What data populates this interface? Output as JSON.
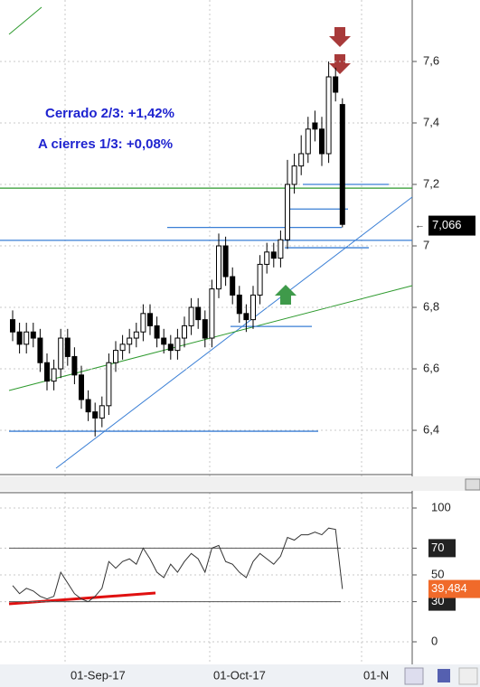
{
  "chart_data": {
    "type": "candlestick",
    "open": [
      6.76,
      6.72,
      6.68,
      6.72,
      6.7,
      6.62,
      6.56,
      6.6,
      6.7,
      6.64,
      6.58,
      6.5,
      6.46,
      6.44,
      6.48,
      6.62,
      6.66,
      6.68,
      6.7,
      6.72,
      6.78,
      6.74,
      6.7,
      6.68,
      6.66,
      6.7,
      6.74,
      6.8,
      6.76,
      6.7,
      6.86,
      7.0,
      6.9,
      6.84,
      6.78,
      6.76,
      6.84,
      6.94,
      6.98,
      6.96,
      7.02,
      7.2,
      7.26,
      7.3,
      7.4,
      7.38,
      7.3,
      7.55,
      7.46
    ],
    "high": [
      6.79,
      6.75,
      6.75,
      6.75,
      6.73,
      6.65,
      6.63,
      6.73,
      6.73,
      6.67,
      6.61,
      6.53,
      6.49,
      6.51,
      6.65,
      6.69,
      6.71,
      6.73,
      6.75,
      6.81,
      6.81,
      6.77,
      6.73,
      6.71,
      6.73,
      6.77,
      6.83,
      6.83,
      6.79,
      6.89,
      7.04,
      7.03,
      6.93,
      6.87,
      6.81,
      6.87,
      6.97,
      7.01,
      7.01,
      7.05,
      7.28,
      7.3,
      7.36,
      7.42,
      7.44,
      7.42,
      7.6,
      7.58,
      7.48
    ],
    "low": [
      6.69,
      6.65,
      6.65,
      6.67,
      6.59,
      6.53,
      6.53,
      6.57,
      6.61,
      6.55,
      6.47,
      6.43,
      6.38,
      6.41,
      6.45,
      6.59,
      6.63,
      6.65,
      6.67,
      6.69,
      6.71,
      6.67,
      6.65,
      6.63,
      6.63,
      6.67,
      6.71,
      6.73,
      6.67,
      6.67,
      6.83,
      6.87,
      6.81,
      6.75,
      6.72,
      6.73,
      6.81,
      6.91,
      6.93,
      6.93,
      6.99,
      7.17,
      7.23,
      7.27,
      7.34,
      7.26,
      7.27,
      7.47,
      7.06
    ],
    "close": [
      6.72,
      6.68,
      6.72,
      6.7,
      6.62,
      6.56,
      6.6,
      6.7,
      6.64,
      6.58,
      6.5,
      6.46,
      6.44,
      6.48,
      6.62,
      6.66,
      6.68,
      6.7,
      6.72,
      6.78,
      6.74,
      6.7,
      6.68,
      6.66,
      6.7,
      6.74,
      6.8,
      6.76,
      6.7,
      6.86,
      7.0,
      6.9,
      6.84,
      6.78,
      6.76,
      6.84,
      6.94,
      6.98,
      6.96,
      7.02,
      7.2,
      7.26,
      7.3,
      7.38,
      7.38,
      7.3,
      7.55,
      7.5,
      7.07
    ],
    "ylim": [
      6.256,
      7.8
    ],
    "yticks": [
      {
        "value": 6.4,
        "label": "6,4"
      },
      {
        "value": 6.6,
        "label": "6,6"
      },
      {
        "value": 6.8,
        "label": "6,8"
      },
      7,
      {
        "value": 7.2,
        "label": "7,2"
      },
      {
        "value": 7.4,
        "label": "7,4"
      },
      {
        "value": 7.6,
        "label": "7,6"
      }
    ],
    "last_price": {
      "value": 7.066,
      "label": "7,066"
    },
    "levels": [
      {
        "value": 7.188,
        "color": "#2e9a2e"
      },
      {
        "value": 7.018,
        "color": "#3a7fd5"
      },
      {
        "value": 7.2,
        "color": "#3a7fd5"
      },
      {
        "value": 7.12,
        "color": "#3a7fd5"
      },
      {
        "value": 7.06,
        "color": "#3a7fd5"
      },
      {
        "value": 6.994,
        "color": "#3a7fd5"
      },
      {
        "value": 6.738,
        "color": "#3a7fd5"
      },
      {
        "value": 6.397,
        "color": "#3a7fd5"
      }
    ],
    "annotations": [
      "Cerrado 2/3: +1,42%",
      "A cierres 1/3: +0,08%"
    ],
    "xtick_labels": [
      "01-Sep-17",
      "01-Oct-17",
      "01-N"
    ],
    "rsi": {
      "values": [
        42,
        36,
        40,
        38,
        34,
        32,
        34,
        52,
        44,
        36,
        32,
        30,
        34,
        40,
        60,
        55,
        60,
        62,
        58,
        70,
        62,
        52,
        48,
        58,
        52,
        60,
        66,
        62,
        52,
        70,
        72,
        60,
        58,
        52,
        48,
        60,
        66,
        62,
        58,
        64,
        78,
        76,
        80,
        80,
        82,
        80,
        85,
        84,
        39.484
      ],
      "ylim": [
        0,
        100
      ],
      "yticks": [
        0,
        30,
        50,
        70,
        100
      ],
      "levels": [
        70,
        30
      ],
      "last": {
        "value": 39.484,
        "label": "39,484"
      }
    }
  }
}
